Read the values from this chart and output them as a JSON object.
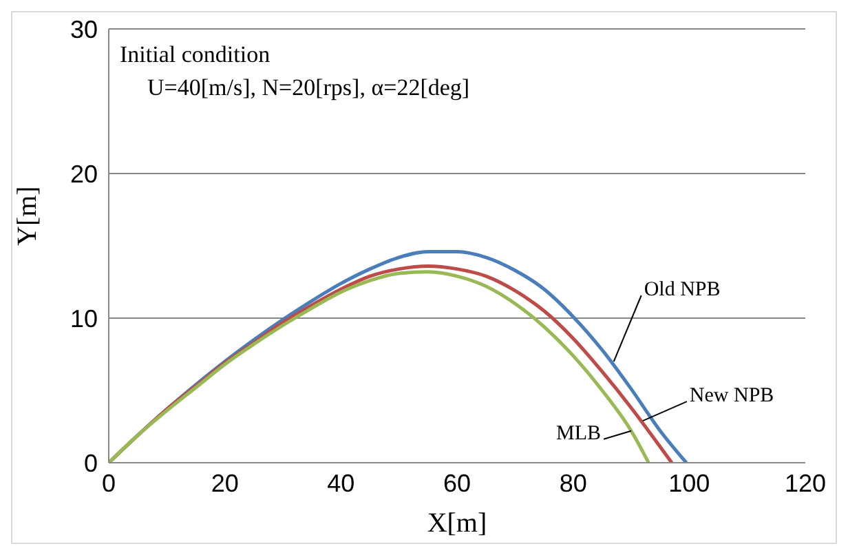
{
  "chart_data": {
    "type": "line",
    "xlabel": "X[m]",
    "ylabel": "Y[m]",
    "xlim": [
      0,
      120
    ],
    "xticks": [
      0,
      20,
      40,
      60,
      80,
      100,
      120
    ],
    "ylim": [
      0,
      30
    ],
    "yticks": [
      0,
      10,
      20,
      30
    ],
    "grid": "y",
    "marker": "none",
    "line_style": "solid",
    "series": [
      {
        "color": "#4a7ebb",
        "x": [
          0,
          5,
          10,
          15,
          20,
          25,
          30,
          35,
          40,
          45,
          50,
          55,
          60,
          65,
          70,
          75,
          80,
          85,
          90,
          95,
          99.5
        ],
        "values": [
          0,
          1.9,
          3.7,
          5.4,
          7.0,
          8.5,
          9.9,
          11.2,
          12.4,
          13.4,
          14.2,
          14.6,
          14.6,
          14.2,
          13.3,
          12.0,
          10.1,
          7.8,
          5.1,
          2.2,
          0
        ]
      },
      {
        "color": "#be4b48",
        "x": [
          0,
          5,
          10,
          15,
          20,
          25,
          30,
          35,
          40,
          45,
          50,
          55,
          60,
          65,
          70,
          75,
          80,
          85,
          90,
          95,
          97
        ],
        "values": [
          0,
          1.9,
          3.7,
          5.3,
          6.9,
          8.3,
          9.7,
          10.9,
          12.0,
          12.9,
          13.4,
          13.6,
          13.4,
          12.9,
          11.9,
          10.5,
          8.6,
          6.3,
          3.8,
          1.1,
          0
        ]
      },
      {
        "color": "#98b954",
        "x": [
          0,
          5,
          10,
          15,
          20,
          25,
          30,
          35,
          40,
          45,
          50,
          55,
          60,
          65,
          70,
          75,
          80,
          85,
          90,
          93
        ],
        "values": [
          0,
          1.9,
          3.6,
          5.2,
          6.8,
          8.2,
          9.5,
          10.7,
          11.8,
          12.6,
          13.1,
          13.2,
          12.9,
          12.2,
          11.0,
          9.4,
          7.4,
          5.0,
          2.2,
          0
        ]
      }
    ],
    "annotations": [
      "Initial condition",
      "U=40[m/s], N=20[rps], α=22[deg]",
      {
        "text": "Old NPB",
        "x": 87,
        "y": 7.0
      },
      {
        "text": "New NPB",
        "x": 92,
        "y": 2.9
      },
      {
        "text": "MLB",
        "x": 90,
        "y": 2.2
      }
    ]
  }
}
